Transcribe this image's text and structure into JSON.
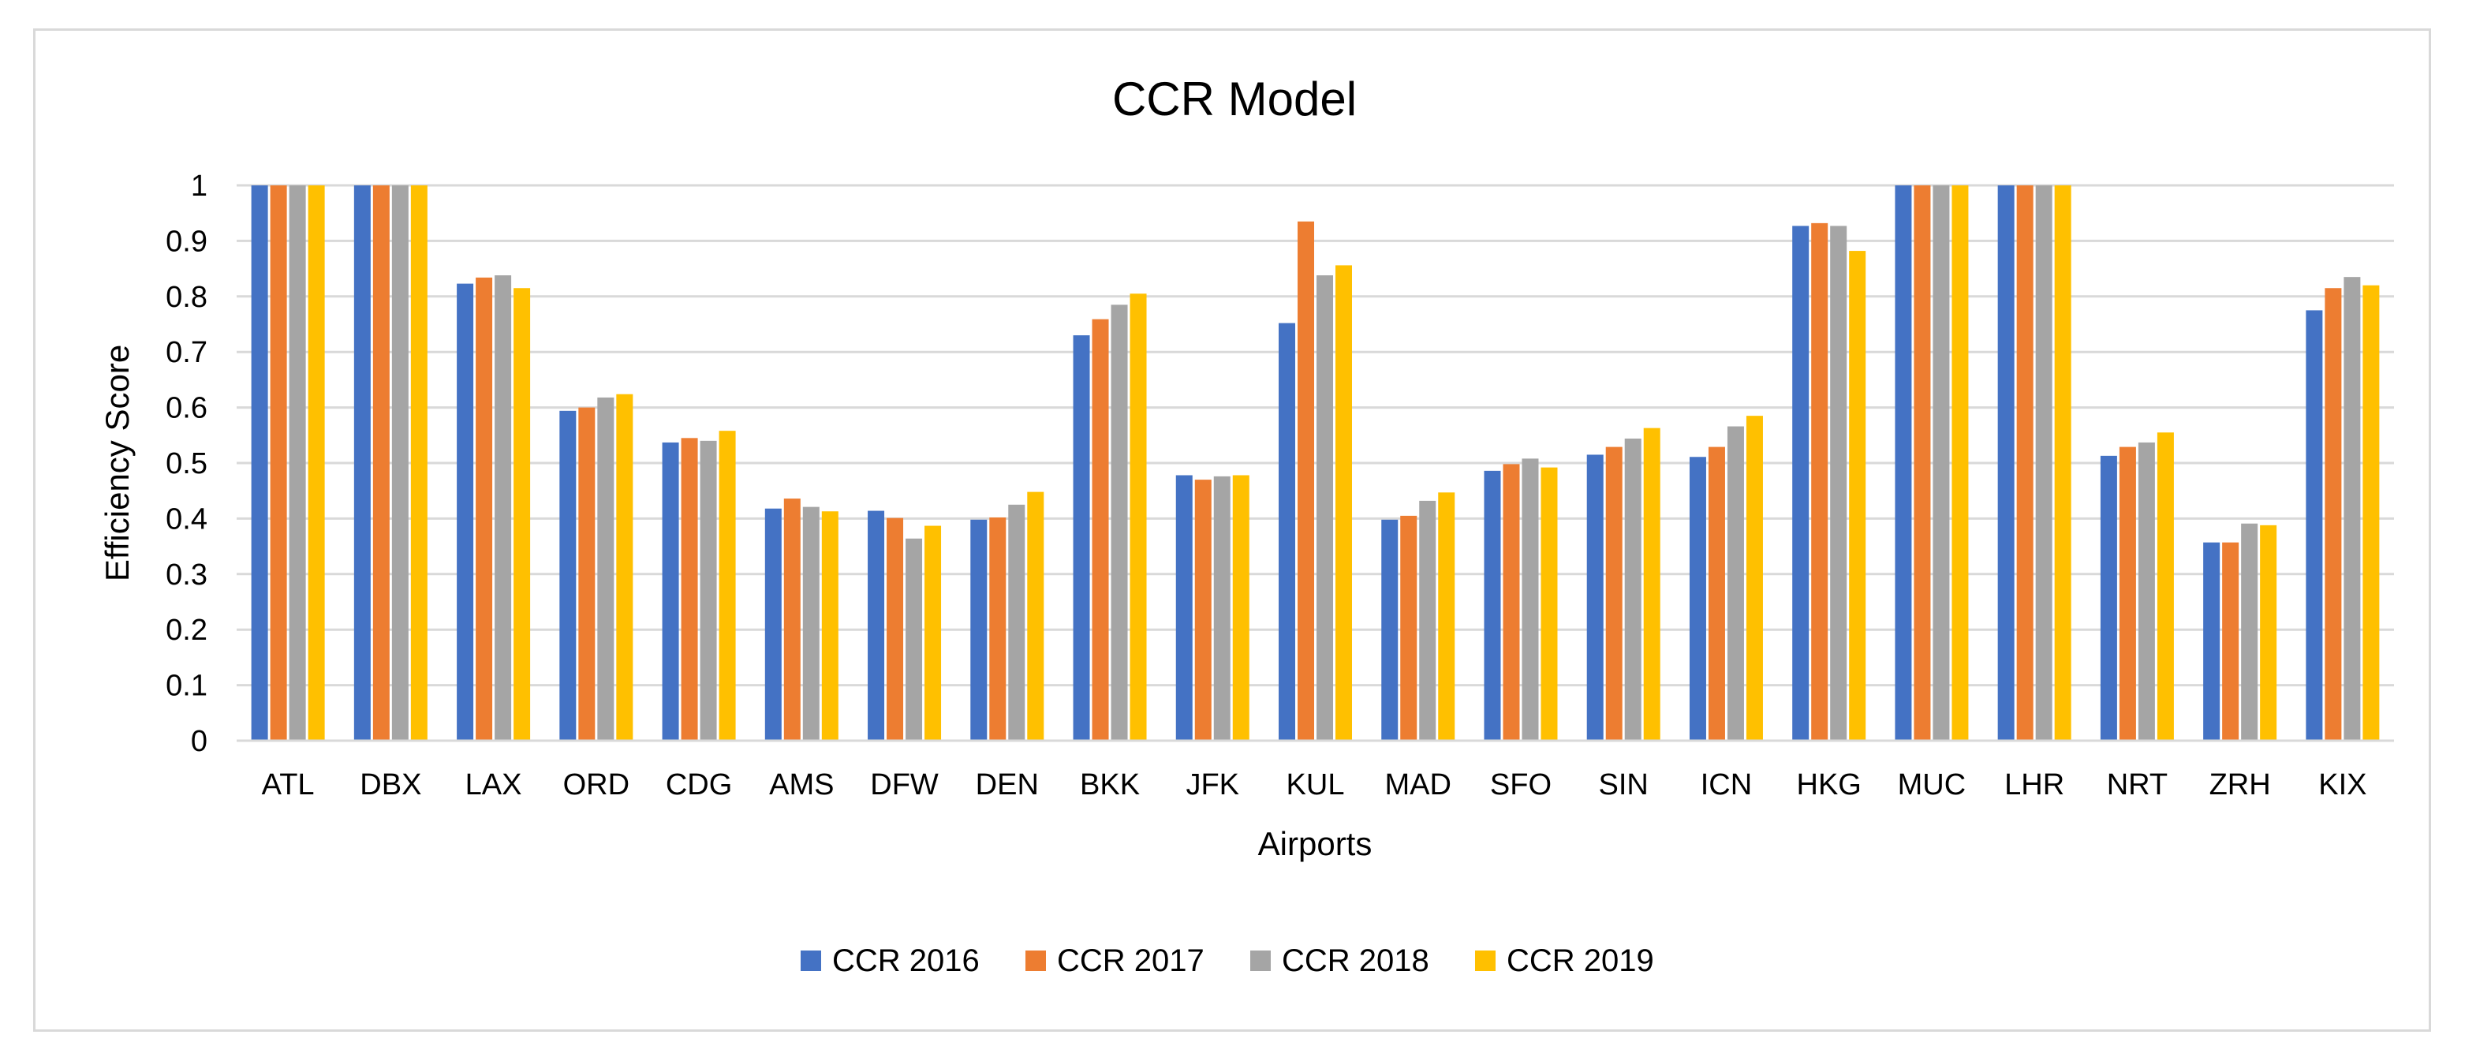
{
  "chart_data": {
    "type": "bar",
    "title": "CCR Model",
    "xlabel": "Airports",
    "ylabel": "Efficiency Score",
    "ylim": [
      0,
      1
    ],
    "yticks": [
      "0",
      "0.1",
      "0.2",
      "0.3",
      "0.4",
      "0.5",
      "0.6",
      "0.7",
      "0.8",
      "0.9",
      "1"
    ],
    "grid": true,
    "legend_position": "bottom",
    "categories": [
      "ATL",
      "DBX",
      "LAX",
      "ORD",
      "CDG",
      "AMS",
      "DFW",
      "DEN",
      "BKK",
      "JFK",
      "KUL",
      "MAD",
      "SFO",
      "SIN",
      "ICN",
      "HKG",
      "MUC",
      "LHR",
      "NRT",
      "ZRH",
      "KIX"
    ],
    "series": [
      {
        "name": "CCR 2016",
        "color": "#4472c4",
        "values": [
          1,
          1,
          0.823,
          0.594,
          0.537,
          0.418,
          0.414,
          0.398,
          0.73,
          0.478,
          0.752,
          0.398,
          0.486,
          0.515,
          0.511,
          0.927,
          1,
          1,
          0.513,
          0.357,
          0.775
        ]
      },
      {
        "name": "CCR 2017",
        "color": "#ed7d31",
        "values": [
          1,
          1,
          0.834,
          0.6,
          0.545,
          0.436,
          0.401,
          0.402,
          0.759,
          0.47,
          0.935,
          0.405,
          0.498,
          0.529,
          0.529,
          0.932,
          1,
          1,
          0.529,
          0.357,
          0.815
        ]
      },
      {
        "name": "CCR 2018",
        "color": "#a5a5a5",
        "values": [
          1,
          1,
          0.838,
          0.618,
          0.54,
          0.421,
          0.364,
          0.425,
          0.785,
          0.476,
          0.838,
          0.432,
          0.508,
          0.544,
          0.566,
          0.927,
          1,
          1,
          0.537,
          0.391,
          0.835
        ]
      },
      {
        "name": "CCR 2019",
        "color": "#ffc000",
        "values": [
          1,
          1,
          0.815,
          0.624,
          0.558,
          0.413,
          0.387,
          0.448,
          0.805,
          0.478,
          0.856,
          0.447,
          0.492,
          0.563,
          0.585,
          0.882,
          1,
          1,
          0.555,
          0.388,
          0.82
        ]
      }
    ]
  }
}
